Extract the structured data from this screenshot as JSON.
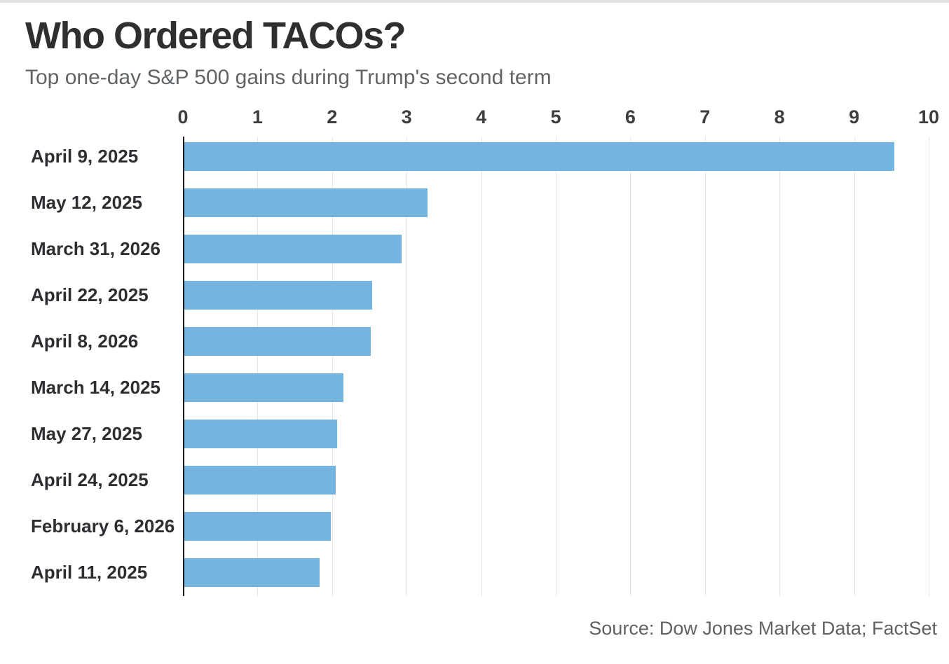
{
  "header": {
    "title": "Who Ordered TACOs?",
    "subtitle": "Top one-day S&P 500 gains during Trump's second term"
  },
  "footer": {
    "source": "Source: Dow Jones Market Data; FactSet"
  },
  "chart_data": {
    "type": "bar",
    "orientation": "horizontal",
    "title": "Who Ordered TACOs?",
    "subtitle": "Top one-day S&P 500 gains during Trump's second term",
    "categories": [
      "April 9, 2025",
      "May 12, 2025",
      "March 31, 2026",
      "April 22, 2025",
      "April 8, 2026",
      "March 14, 2025",
      "May 27, 2025",
      "April 24, 2025",
      "February 6, 2026",
      "April 11, 2025"
    ],
    "values": [
      9.52,
      3.26,
      2.91,
      2.52,
      2.5,
      2.13,
      2.05,
      2.03,
      1.96,
      1.81
    ],
    "xlabel": "",
    "ylabel": "",
    "xlim": [
      0,
      10
    ],
    "x_ticks": [
      0,
      1,
      2,
      3,
      4,
      5,
      6,
      7,
      8,
      9,
      10
    ],
    "grid": true,
    "legend": false,
    "axis_position": "top",
    "source": "Source: Dow Jones Market Data; FactSet",
    "colors": {
      "bar": "#73b4e1",
      "gridline": "#e5e5e5",
      "axis_line": "#1a1a1a",
      "title_text": "#2e2f30",
      "subtitle_text": "#606467",
      "tick_text": "#3c3e40",
      "category_text": "#2c2e31",
      "source_text": "#5e6265",
      "top_border": "#e3e3e3"
    }
  }
}
